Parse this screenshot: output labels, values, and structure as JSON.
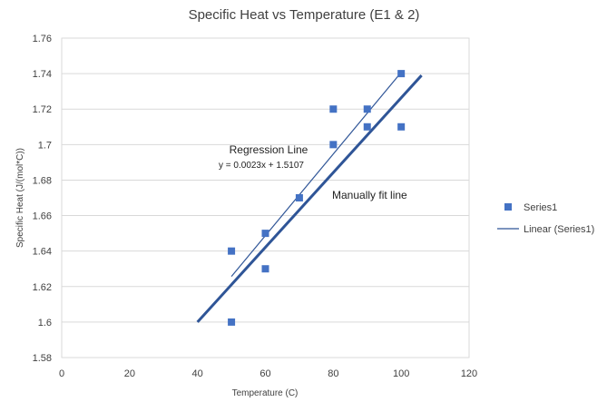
{
  "chart_data": {
    "type": "scatter",
    "title": "Specific Heat vs Temperature (E1 & 2)",
    "xlabel": "Temperature (C)",
    "ylabel": "Specific Heat (J/(mol*C))",
    "xlim": [
      0,
      120
    ],
    "ylim": [
      1.58,
      1.76
    ],
    "x_ticks": [
      "0",
      "20",
      "40",
      "60",
      "80",
      "100",
      "120"
    ],
    "y_ticks": [
      "1.58",
      "1.6",
      "1.62",
      "1.64",
      "1.66",
      "1.68",
      "1.7",
      "1.72",
      "1.74",
      "1.76"
    ],
    "grid": true,
    "legend_position": "right",
    "series": [
      {
        "name": "Series1",
        "x": [
          50,
          50,
          60,
          60,
          70,
          80,
          80,
          90,
          90,
          100,
          100
        ],
        "y": [
          1.64,
          1.6,
          1.65,
          1.63,
          1.67,
          1.72,
          1.7,
          1.72,
          1.71,
          1.74,
          1.71
        ],
        "color": "#4472C4"
      }
    ],
    "trendline": {
      "name": "Linear (Series1)",
      "slope": 0.0023,
      "intercept": 1.5107,
      "x_range": [
        50,
        100
      ],
      "color": "#2F5597"
    },
    "manual_line": {
      "x": [
        40,
        106
      ],
      "y": [
        1.6,
        1.739
      ],
      "color": "#2F5597"
    },
    "annotations": {
      "regression_label": "Regression Line",
      "equation": "y = 0.0023x + 1.5107",
      "manual_label": "Manually fit line"
    }
  }
}
